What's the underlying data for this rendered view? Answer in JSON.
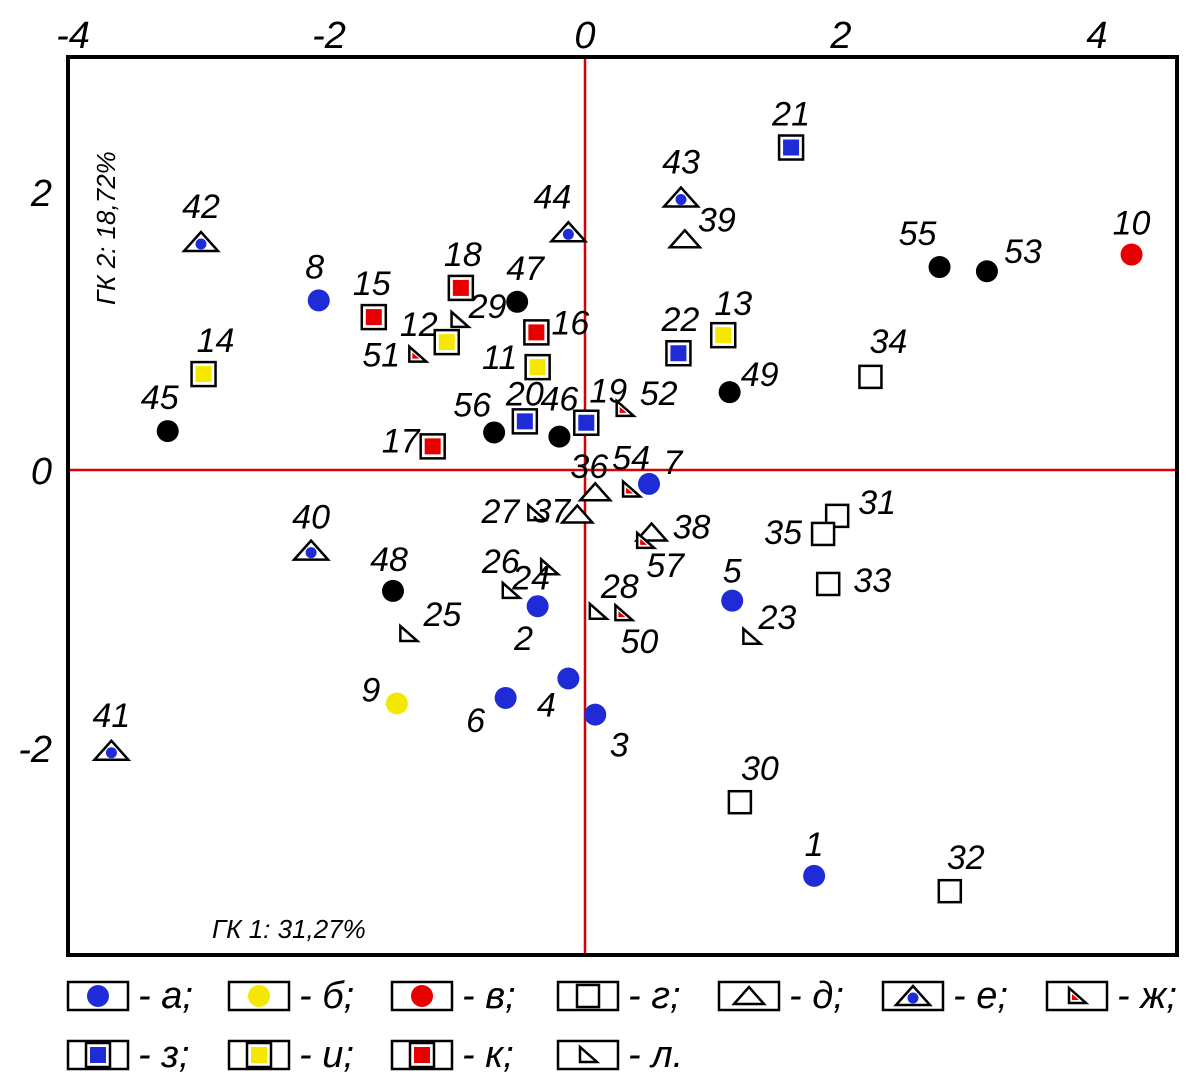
{
  "chart_data": {
    "type": "scatter",
    "xlabel": "ГК 1: 31,27%",
    "ylabel": "ГК 2: 18,72%",
    "xlim": [
      -4.0,
      4.4
    ],
    "ylim": [
      -3.5,
      3.0
    ],
    "x_ticks": [
      -4,
      -2,
      0,
      2,
      4
    ],
    "y_ticks": [
      -2,
      0,
      2
    ],
    "x_tick_labels": [
      "-4",
      "-2",
      "0",
      "2",
      "4"
    ],
    "y_tick_labels": [
      "-2",
      "0",
      "2"
    ],
    "zero_lines": true,
    "colors": {
      "blue": "#1f2bd6",
      "yellow": "#f5e800",
      "red": "#e60000",
      "black": "#000000",
      "axis_line": "#d80000"
    },
    "categories": [
      {
        "key": "a",
        "label": "а",
        "shape": "circle",
        "fill": "#1f2bd6"
      },
      {
        "key": "b",
        "label": "б",
        "shape": "circle",
        "fill": "#f5e800"
      },
      {
        "key": "v",
        "label": "в",
        "shape": "circle",
        "fill": "#e60000"
      },
      {
        "key": "g",
        "label": "г",
        "shape": "square-open"
      },
      {
        "key": "d",
        "label": "д",
        "shape": "triangle-open"
      },
      {
        "key": "e",
        "label": "е",
        "shape": "triangle-blue"
      },
      {
        "key": "zh",
        "label": "ж",
        "shape": "rtriangle-red"
      },
      {
        "key": "z",
        "label": "з",
        "shape": "square-blue"
      },
      {
        "key": "i",
        "label": "и",
        "shape": "square-yellow"
      },
      {
        "key": "k",
        "label": "к",
        "shape": "square-red"
      },
      {
        "key": "l",
        "label": "л",
        "shape": "rtriangle-open"
      },
      {
        "key": "black",
        "label": "",
        "shape": "circle",
        "fill": "#000000"
      }
    ],
    "points": [
      {
        "id": "1",
        "cat": "a",
        "x": 1.79,
        "y": -2.92
      },
      {
        "id": "2",
        "cat": "a",
        "x": -0.37,
        "y": -0.98
      },
      {
        "id": "3",
        "cat": "a",
        "x": 0.08,
        "y": -1.76
      },
      {
        "id": "4",
        "cat": "a",
        "x": -0.13,
        "y": -1.5
      },
      {
        "id": "5",
        "cat": "a",
        "x": 1.15,
        "y": -0.94
      },
      {
        "id": "6",
        "cat": "a",
        "x": -0.62,
        "y": -1.64
      },
      {
        "id": "7",
        "cat": "a",
        "x": 0.5,
        "y": -0.1
      },
      {
        "id": "8",
        "cat": "a",
        "x": -2.08,
        "y": 1.22
      },
      {
        "id": "9",
        "cat": "b",
        "x": -1.47,
        "y": -1.68
      },
      {
        "id": "10",
        "cat": "v",
        "x": 4.27,
        "y": 1.55
      },
      {
        "id": "11",
        "cat": "i",
        "x": -0.37,
        "y": 0.74
      },
      {
        "id": "12",
        "cat": "i",
        "x": -1.08,
        "y": 0.92
      },
      {
        "id": "13",
        "cat": "i",
        "x": 1.08,
        "y": 0.97
      },
      {
        "id": "14",
        "cat": "i",
        "x": -2.98,
        "y": 0.69
      },
      {
        "id": "15",
        "cat": "k",
        "x": -1.65,
        "y": 1.1
      },
      {
        "id": "16",
        "cat": "k",
        "x": -0.38,
        "y": 0.99
      },
      {
        "id": "17",
        "cat": "k",
        "x": -1.19,
        "y": 0.17
      },
      {
        "id": "18",
        "cat": "k",
        "x": -0.97,
        "y": 1.31
      },
      {
        "id": "19",
        "cat": "z",
        "x": 0.01,
        "y": 0.34
      },
      {
        "id": "20",
        "cat": "z",
        "x": -0.47,
        "y": 0.35
      },
      {
        "id": "21",
        "cat": "z",
        "x": 1.61,
        "y": 2.32
      },
      {
        "id": "22",
        "cat": "z",
        "x": 0.73,
        "y": 0.84
      },
      {
        "id": "23",
        "cat": "l",
        "x": 1.3,
        "y": -1.2
      },
      {
        "id": "24",
        "cat": "l",
        "x": -0.28,
        "y": -0.7
      },
      {
        "id": "25",
        "cat": "l",
        "x": -1.38,
        "y": -1.18
      },
      {
        "id": "26",
        "cat": "l",
        "x": -0.58,
        "y": -0.87
      },
      {
        "id": "27",
        "cat": "l",
        "x": -0.38,
        "y": -0.31
      },
      {
        "id": "28",
        "cat": "l",
        "x": 0.1,
        "y": -1.02
      },
      {
        "id": "29",
        "cat": "l",
        "x": -0.98,
        "y": 1.08
      },
      {
        "id": "30",
        "cat": "g",
        "x": 1.21,
        "y": -2.39
      },
      {
        "id": "31",
        "cat": "g",
        "x": 1.97,
        "y": -0.33
      },
      {
        "id": "32",
        "cat": "g",
        "x": 2.85,
        "y": -3.03
      },
      {
        "id": "33",
        "cat": "g",
        "x": 1.9,
        "y": -0.82
      },
      {
        "id": "34",
        "cat": "g",
        "x": 2.23,
        "y": 0.67
      },
      {
        "id": "35",
        "cat": "g",
        "x": 1.86,
        "y": -0.46
      },
      {
        "id": "36",
        "cat": "d",
        "x": 0.08,
        "y": -0.16
      },
      {
        "id": "37",
        "cat": "d",
        "x": -0.06,
        "y": -0.32
      },
      {
        "id": "38",
        "cat": "d",
        "x": 0.52,
        "y": -0.45
      },
      {
        "id": "39",
        "cat": "d",
        "x": 0.78,
        "y": 1.66
      },
      {
        "id": "40",
        "cat": "e",
        "x": -2.14,
        "y": -0.58
      },
      {
        "id": "41",
        "cat": "e",
        "x": -3.7,
        "y": -2.02
      },
      {
        "id": "42",
        "cat": "e",
        "x": -3.0,
        "y": 1.64
      },
      {
        "id": "43",
        "cat": "e",
        "x": 0.75,
        "y": 1.96
      },
      {
        "id": "44",
        "cat": "e",
        "x": -0.13,
        "y": 1.71
      },
      {
        "id": "45",
        "cat": "black",
        "x": -3.26,
        "y": 0.28
      },
      {
        "id": "46",
        "cat": "black",
        "x": -0.2,
        "y": 0.24
      },
      {
        "id": "47",
        "cat": "black",
        "x": -0.53,
        "y": 1.21
      },
      {
        "id": "48",
        "cat": "black",
        "x": -1.5,
        "y": -0.87
      },
      {
        "id": "49",
        "cat": "black",
        "x": 1.13,
        "y": 0.56
      },
      {
        "id": "50",
        "cat": "zh",
        "x": 0.3,
        "y": -1.03
      },
      {
        "id": "51",
        "cat": "zh",
        "x": -1.31,
        "y": 0.83
      },
      {
        "id": "52",
        "cat": "zh",
        "x": 0.31,
        "y": 0.44
      },
      {
        "id": "53",
        "cat": "black",
        "x": 3.14,
        "y": 1.43
      },
      {
        "id": "54",
        "cat": "zh",
        "x": 0.36,
        "y": -0.14
      },
      {
        "id": "55",
        "cat": "black",
        "x": 2.77,
        "y": 1.46
      },
      {
        "id": "56",
        "cat": "black",
        "x": -0.71,
        "y": 0.27
      },
      {
        "id": "57",
        "cat": "zh",
        "x": 0.47,
        "y": -0.51
      }
    ],
    "legend": {
      "row1": [
        {
          "cat": "a",
          "text": "- а;"
        },
        {
          "cat": "b",
          "text": "- б;"
        },
        {
          "cat": "v",
          "text": "- в;"
        },
        {
          "cat": "g",
          "text": "- г;"
        },
        {
          "cat": "d",
          "text": "- д;"
        },
        {
          "cat": "e",
          "text": "- е;"
        },
        {
          "cat": "zh",
          "text": "- ж;"
        }
      ],
      "row2": [
        {
          "cat": "z",
          "text": "- з;"
        },
        {
          "cat": "i",
          "text": "- и;"
        },
        {
          "cat": "k",
          "text": "- к;"
        },
        {
          "cat": "l",
          "text": "- л."
        }
      ]
    }
  }
}
